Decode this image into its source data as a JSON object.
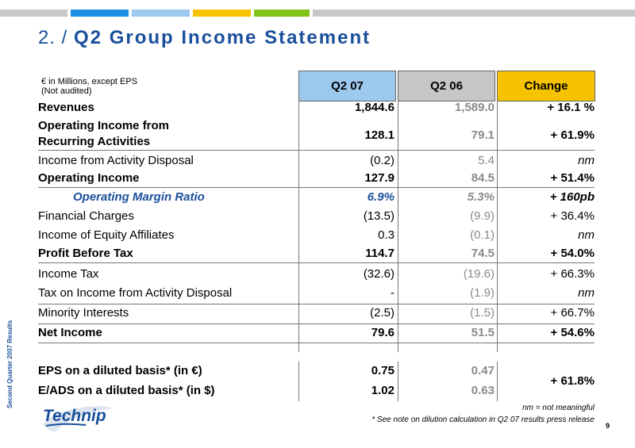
{
  "colors": {
    "blue": "#1a4f9c",
    "header_q207": "#9ec9ee",
    "header_q206": "#c6c6c6",
    "header_change": "#f7c300",
    "bar": [
      "#c8c8c8",
      "#1e90e6",
      "#9ec9ee",
      "#f7c300",
      "#84c21c",
      "#c8c8c8"
    ]
  },
  "title": {
    "number": "2. /",
    "text": "Q2 Group Income Statement"
  },
  "side_label": "Second Quarter 2007 Results",
  "units": {
    "line1": "€ in Millions, except EPS",
    "line2": "(Not audited)"
  },
  "columns": [
    "Q2 07",
    "Q2 06",
    "Change"
  ],
  "rows": [
    {
      "label": "Revenues",
      "q207": "1,844.6",
      "q206": "1,589.0",
      "change": "+ 16.1 %"
    },
    {
      "label": "Operating Income from",
      "label2": "Recurring Activities",
      "q207": "128.1",
      "q206": "79.1",
      "change": "+ 61.9%"
    },
    {
      "label": "Income from Activity Disposal",
      "q207": "(0.2)",
      "q206": "5.4",
      "change": "nm"
    },
    {
      "label": "Operating Income",
      "q207": "127.9",
      "q206": "84.5",
      "change": "+ 51.4%"
    },
    {
      "label": "Operating Margin Ratio",
      "q207": "6.9%",
      "q206": "5.3%",
      "change": "+ 160pb"
    },
    {
      "label": "Financial Charges",
      "q207": "(13.5)",
      "q206": "(9.9)",
      "change": "+ 36.4%"
    },
    {
      "label": "Income of Equity Affiliates",
      "q207": "0.3",
      "q206": "(0.1)",
      "change": "nm"
    },
    {
      "label": "Profit Before Tax",
      "q207": "114.7",
      "q206": "74.5",
      "change": "+ 54.0%"
    },
    {
      "label": "Income Tax",
      "q207": "(32.6)",
      "q206": "(19.6)",
      "change": "+ 66.3%"
    },
    {
      "label": "Tax on Income from Activity Disposal",
      "q207": "-",
      "q206": "(1.9)",
      "change": "nm"
    },
    {
      "label": "Minority Interests",
      "q207": "(2.5)",
      "q206": "(1.5)",
      "change": "+ 66.7%"
    },
    {
      "label": "Net Income",
      "q207": "79.6",
      "q206": "51.5",
      "change": "+ 54.6%"
    },
    {
      "label": "EPS on a diluted basis* (in €)",
      "q207": "0.75",
      "q206": "0.47",
      "change": "+ 61.8%"
    },
    {
      "label": "E/ADS on a diluted basis* (in $)",
      "q207": "1.02",
      "q206": "0.63"
    }
  ],
  "logo_text": "Technip",
  "footnotes": {
    "nm": "nm = not meaningful",
    "dilution": "* See note on dilution calculation in Q2 07 results press release"
  },
  "page_number": "9"
}
